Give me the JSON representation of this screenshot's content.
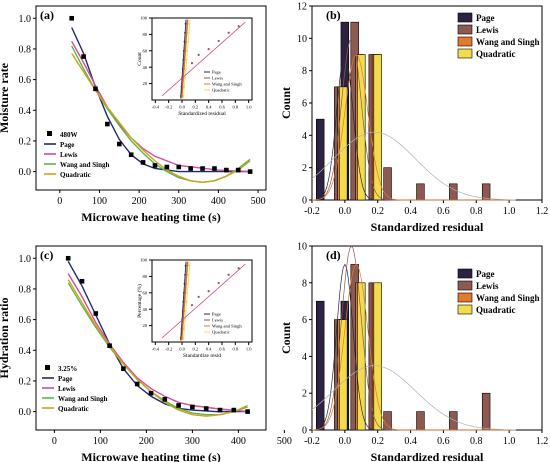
{
  "colors": {
    "page": "#2d2340",
    "lewis": "#8d5a52",
    "wang": "#e07b2e",
    "quadratic": "#f3dc4c",
    "fit_page": "#1f2a6a",
    "fit_lewis": "#d64b9a",
    "fit_wang": "#5fb548",
    "fit_quadratic": "#c8a51c",
    "normal_curve": "#b0b0b0"
  },
  "chart_data": [
    {
      "type": "scatter",
      "panel_label": "(a)",
      "xlabel": "Microwave heating time (s)",
      "ylabel": "Moisture rate",
      "xlim": [
        -60,
        520
      ],
      "ylim": [
        -0.12,
        1.08
      ],
      "xticks": [
        "0",
        "100",
        "200",
        "300",
        "400",
        "500"
      ],
      "yticks": [
        "0.0",
        "0.2",
        "0.4",
        "0.6",
        "0.8",
        "1.0"
      ],
      "observed": {
        "name": "480W",
        "x": [
          30,
          60,
          90,
          120,
          150,
          180,
          210,
          240,
          270,
          300,
          330,
          360,
          390,
          420,
          450,
          480
        ],
        "y": [
          1.0,
          0.75,
          0.54,
          0.31,
          0.18,
          0.11,
          0.06,
          0.04,
          0.03,
          0.03,
          0.02,
          0.02,
          0.02,
          0.01,
          0.01,
          0.0
        ]
      },
      "series": [
        {
          "name": "Page",
          "x": [
            30,
            60,
            90,
            120,
            150,
            180,
            210,
            240,
            270,
            300,
            350,
            420,
            480
          ],
          "y": [
            0.94,
            0.77,
            0.55,
            0.36,
            0.21,
            0.11,
            0.05,
            0.02,
            0.01,
            0.0,
            0.0,
            0.0,
            0.0
          ]
        },
        {
          "name": "Lewis",
          "x": [
            30,
            60,
            90,
            120,
            150,
            180,
            210,
            240,
            300,
            400,
            480
          ],
          "y": [
            0.85,
            0.71,
            0.56,
            0.42,
            0.31,
            0.22,
            0.15,
            0.1,
            0.04,
            0.01,
            0.0
          ]
        },
        {
          "name": "Wang and Singh",
          "x": [
            30,
            60,
            90,
            120,
            150,
            180,
            210,
            240,
            270,
            300,
            330,
            360,
            390,
            420,
            450,
            480
          ],
          "y": [
            0.82,
            0.67,
            0.53,
            0.41,
            0.3,
            0.2,
            0.12,
            0.05,
            0.0,
            -0.04,
            -0.06,
            -0.07,
            -0.06,
            -0.03,
            0.02,
            0.08
          ]
        },
        {
          "name": "Quadratic",
          "x": [
            30,
            60,
            90,
            120,
            150,
            180,
            210,
            240,
            270,
            300,
            330,
            360,
            390,
            420,
            450,
            480
          ],
          "y": [
            0.77,
            0.65,
            0.53,
            0.42,
            0.32,
            0.22,
            0.14,
            0.07,
            0.01,
            -0.03,
            -0.06,
            -0.07,
            -0.06,
            -0.03,
            0.01,
            0.07
          ]
        }
      ],
      "inset": {
        "xlabel": "Standardized residual",
        "ylabel": "Count",
        "xlim": [
          -0.45,
          1.05
        ],
        "ylim": [
          0,
          100
        ],
        "xticks": [
          "-0.4",
          "-0.2",
          "0.0",
          "0.2",
          "0.4",
          "0.6",
          "0.8",
          "1.0"
        ],
        "yticks": [
          "20",
          "40",
          "60",
          "80",
          "100"
        ],
        "legend": [
          "Page",
          "Lewis",
          "Wang and Singh",
          "Quadratic"
        ]
      }
    },
    {
      "type": "bar",
      "panel_label": "(b)",
      "xlabel": "Standardized residual",
      "ylabel": "Count",
      "xlim": [
        -0.2,
        1.2
      ],
      "ylim": [
        0,
        12
      ],
      "xticks": [
        "-0.2",
        "0.0",
        "0.2",
        "0.4",
        "0.6",
        "0.8",
        "1.0",
        "1.2"
      ],
      "yticks": [
        "0",
        "2",
        "4",
        "6",
        "8",
        "10",
        "12"
      ],
      "series": [
        {
          "name": "Page",
          "x": [
            -0.15,
            0.0
          ],
          "values": [
            5,
            11
          ]
        },
        {
          "name": "Lewis",
          "x": [
            -0.04,
            0.06,
            0.17,
            0.26,
            0.46,
            0.66,
            0.86
          ],
          "values": [
            7,
            11,
            9,
            2,
            1,
            1,
            1
          ]
        },
        {
          "name": "Wang and Singh",
          "x": [
            -0.02,
            0.09,
            0.19
          ],
          "values": [
            7,
            9,
            9
          ]
        },
        {
          "name": "Quadratic",
          "x": [
            -0.01,
            0.1,
            0.2
          ],
          "values": [
            7,
            9,
            9
          ]
        }
      ]
    },
    {
      "type": "scatter",
      "panel_label": "(c)",
      "xlabel": "Microwave heating time (s)",
      "ylabel": "Hydration ratio",
      "xlim": [
        -40,
        460
      ],
      "ylim": [
        -0.12,
        1.08
      ],
      "xticks": [
        "0",
        "100",
        "200",
        "300",
        "400",
        "500"
      ],
      "yticks": [
        "0.0",
        "0.2",
        "0.4",
        "0.6",
        "0.8",
        "1.0"
      ],
      "observed": {
        "name": "3.25%",
        "x": [
          30,
          60,
          90,
          120,
          150,
          180,
          210,
          240,
          270,
          300,
          330,
          360,
          390,
          420
        ],
        "y": [
          1.0,
          0.85,
          0.64,
          0.43,
          0.28,
          0.18,
          0.12,
          0.08,
          0.04,
          0.03,
          0.02,
          0.01,
          0.01,
          0.0
        ]
      },
      "series": [
        {
          "name": "Page",
          "x": [
            30,
            60,
            90,
            120,
            150,
            180,
            210,
            240,
            270,
            300,
            350,
            420
          ],
          "y": [
            0.98,
            0.82,
            0.63,
            0.44,
            0.28,
            0.17,
            0.1,
            0.05,
            0.02,
            0.01,
            0.0,
            0.0
          ]
        },
        {
          "name": "Lewis",
          "x": [
            30,
            60,
            90,
            120,
            150,
            180,
            210,
            240,
            270,
            300,
            350,
            420
          ],
          "y": [
            0.9,
            0.75,
            0.58,
            0.44,
            0.32,
            0.22,
            0.15,
            0.1,
            0.06,
            0.04,
            0.02,
            0.0
          ]
        },
        {
          "name": "Wang and Singh",
          "x": [
            30,
            60,
            90,
            120,
            150,
            180,
            210,
            240,
            270,
            300,
            330,
            360,
            390,
            420
          ],
          "y": [
            0.84,
            0.69,
            0.55,
            0.42,
            0.31,
            0.21,
            0.13,
            0.07,
            0.02,
            -0.01,
            -0.02,
            -0.02,
            0.0,
            0.03
          ]
        },
        {
          "name": "Quadratic",
          "x": [
            30,
            60,
            90,
            120,
            150,
            180,
            210,
            240,
            270,
            300,
            330,
            360,
            390,
            420
          ],
          "y": [
            0.86,
            0.71,
            0.56,
            0.43,
            0.31,
            0.21,
            0.13,
            0.06,
            0.01,
            -0.02,
            -0.03,
            -0.02,
            0.0,
            0.04
          ]
        }
      ],
      "inset": {
        "xlabel": "Standardize resid",
        "ylabel": "Percentage (%)",
        "xlim": [
          -0.45,
          1.05
        ],
        "ylim": [
          0,
          100
        ],
        "xticks": [
          "-0.4",
          "-0.2",
          "0.0",
          "0.2",
          "0.4",
          "0.6",
          "0.8",
          "1.0"
        ],
        "yticks": [
          "20",
          "40",
          "60",
          "80",
          "100"
        ],
        "legend": [
          "Page",
          "Lewis",
          "Wang and Singh",
          "Quadratic"
        ]
      }
    },
    {
      "type": "bar",
      "panel_label": "(d)",
      "xlabel": "Standardized residual",
      "ylabel": "Count",
      "xlim": [
        -0.2,
        1.2
      ],
      "ylim": [
        0,
        10
      ],
      "xticks": [
        "-0.2",
        "0.0",
        "0.2",
        "0.4",
        "0.6",
        "0.8",
        "1.0",
        "1.2"
      ],
      "yticks": [
        "0",
        "2",
        "4",
        "6",
        "8",
        "10"
      ],
      "series": [
        {
          "name": "Page",
          "x": [
            -0.15,
            0.0
          ],
          "values": [
            7,
            7
          ]
        },
        {
          "name": "Lewis",
          "x": [
            -0.04,
            0.06,
            0.17,
            0.26,
            0.46,
            0.66,
            0.86
          ],
          "values": [
            6,
            9,
            8,
            1,
            1,
            1,
            2
          ]
        },
        {
          "name": "Wang and Singh",
          "x": [
            -0.02,
            0.09,
            0.19
          ],
          "values": [
            6,
            8,
            8
          ]
        },
        {
          "name": "Quadratic",
          "x": [
            -0.01,
            0.1,
            0.2
          ],
          "values": [
            6,
            8,
            8
          ]
        }
      ]
    }
  ]
}
